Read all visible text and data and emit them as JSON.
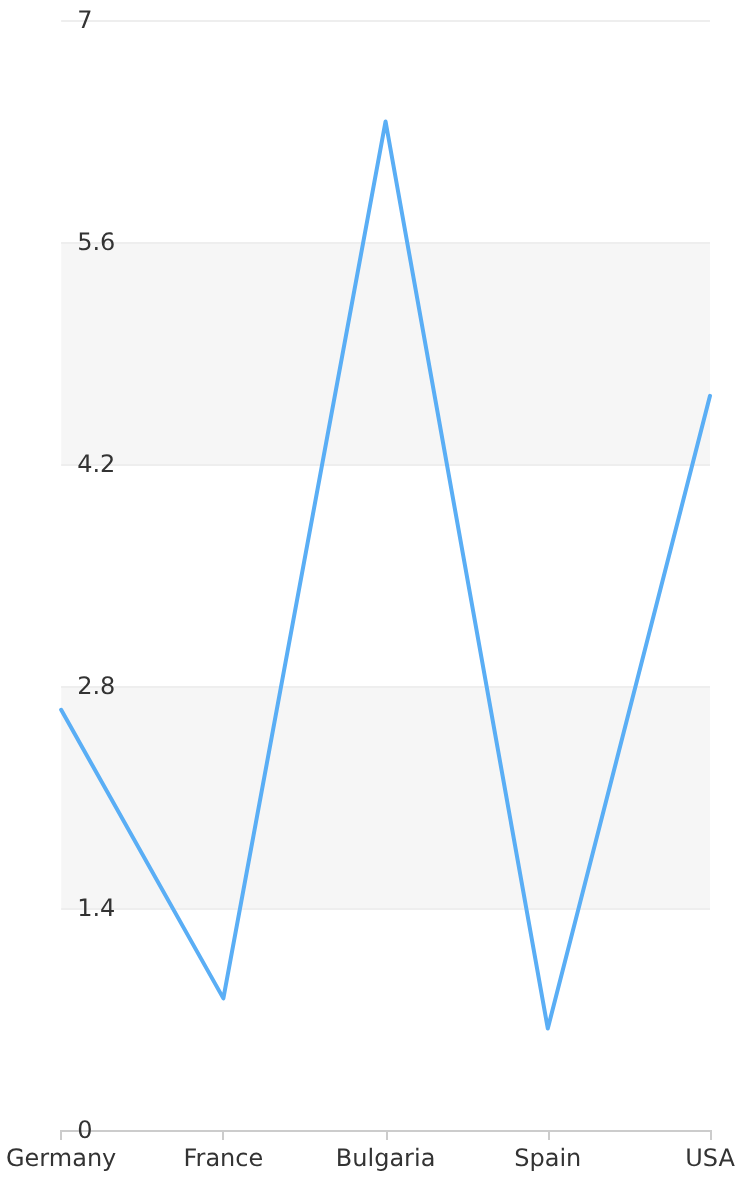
{
  "chart_data": {
    "type": "line",
    "categories": [
      "Germany",
      "France",
      "Bulgaria",
      "Spain",
      "USA"
    ],
    "series": [
      {
        "color": "#5aaef5",
        "values": [
          2.65,
          0.83,
          6.36,
          0.64,
          4.63
        ]
      }
    ],
    "ylim": [
      0,
      7
    ],
    "yticks": [
      0,
      1.4,
      2.8,
      4.2,
      5.6,
      7
    ],
    "grid": "y",
    "marker": "none",
    "line_style": "solid"
  }
}
